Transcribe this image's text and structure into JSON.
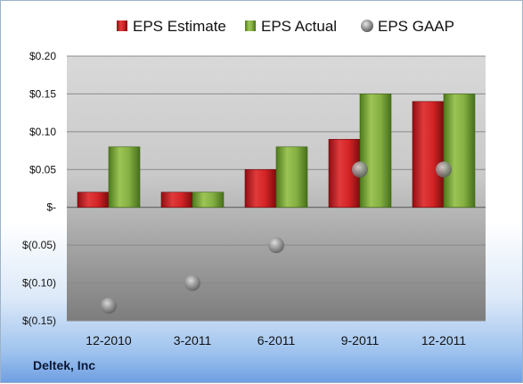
{
  "chart_data": {
    "type": "bar",
    "categories": [
      "12-2010",
      "3-2011",
      "6-2011",
      "9-2011",
      "12-2011"
    ],
    "series": [
      {
        "name": "EPS Estimate",
        "kind": "bar",
        "color": "#c0191c",
        "values": [
          0.02,
          0.02,
          0.05,
          0.09,
          0.14
        ]
      },
      {
        "name": "EPS Actual",
        "kind": "bar",
        "color": "#6f9e2c",
        "values": [
          0.08,
          0.02,
          0.08,
          0.15,
          0.15
        ]
      },
      {
        "name": "EPS GAAP",
        "kind": "scatter",
        "color": "#8c8c8c",
        "values": [
          -0.13,
          -0.1,
          -0.05,
          0.05,
          0.05
        ]
      }
    ],
    "ylim": [
      -0.15,
      0.2
    ],
    "yticks": [
      0.2,
      0.15,
      0.1,
      0.05,
      0,
      -0.05,
      -0.1,
      -0.15
    ],
    "ytick_labels": [
      "$0.20",
      "$0.15",
      "$0.10",
      "$0.05",
      "$-",
      "$(0.05)",
      "$(0.10)",
      "$(0.15)"
    ],
    "legend_position": "top",
    "grid": true
  },
  "company": "Deltek, Inc"
}
